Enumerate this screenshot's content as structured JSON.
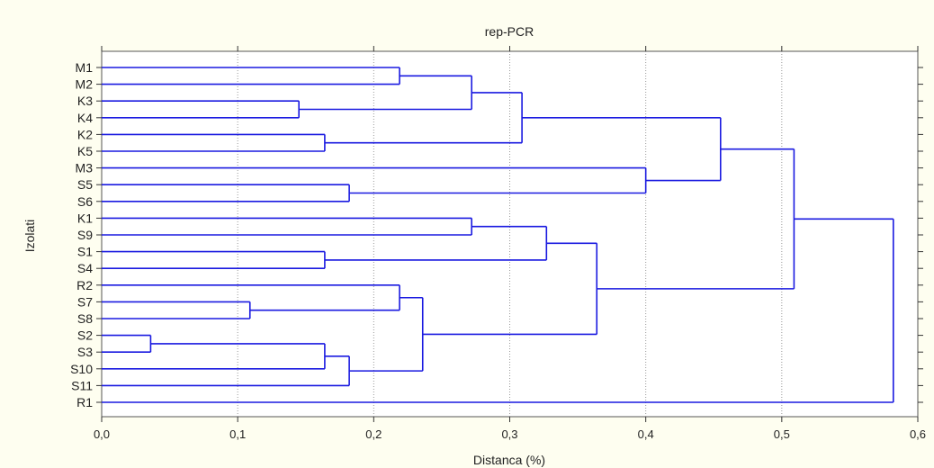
{
  "chart_data": {
    "type": "dendrogram",
    "title": "rep-PCR",
    "xlabel": "Distanca (%)",
    "ylabel": "Izolati",
    "xlim": [
      0.0,
      0.6
    ],
    "xticks": [
      0.0,
      0.1,
      0.2,
      0.3,
      0.4,
      0.5,
      0.6
    ],
    "xtick_labels": [
      "0,0",
      "0,1",
      "0,2",
      "0,3",
      "0,4",
      "0,5",
      "0,6"
    ],
    "grid": "vertical dotted",
    "line_color": "#1a1ae0",
    "leaves": [
      "M1",
      "M2",
      "K3",
      "K4",
      "K2",
      "K5",
      "M3",
      "S5",
      "S6",
      "K1",
      "S9",
      "S1",
      "S4",
      "R2",
      "S7",
      "S8",
      "S2",
      "S3",
      "S10",
      "S11",
      "R1"
    ],
    "merges": [
      {
        "id": "A",
        "children": [
          "M1",
          "M2"
        ],
        "height": 0.219
      },
      {
        "id": "B",
        "children": [
          "K3",
          "K4"
        ],
        "height": 0.145
      },
      {
        "id": "C",
        "children": [
          "A",
          "B"
        ],
        "height": 0.272
      },
      {
        "id": "D",
        "children": [
          "K2",
          "K5"
        ],
        "height": 0.164
      },
      {
        "id": "E",
        "children": [
          "C",
          "D"
        ],
        "height": 0.309
      },
      {
        "id": "F",
        "children": [
          "S5",
          "S6"
        ],
        "height": 0.182
      },
      {
        "id": "G",
        "children": [
          "M3",
          "F"
        ],
        "height": 0.4
      },
      {
        "id": "H",
        "children": [
          "E",
          "G"
        ],
        "height": 0.455
      },
      {
        "id": "I",
        "children": [
          "K1",
          "S9"
        ],
        "height": 0.272
      },
      {
        "id": "J",
        "children": [
          "S1",
          "S4"
        ],
        "height": 0.164
      },
      {
        "id": "K",
        "children": [
          "I",
          "J"
        ],
        "height": 0.327
      },
      {
        "id": "L",
        "children": [
          "S7",
          "S8"
        ],
        "height": 0.109
      },
      {
        "id": "M",
        "children": [
          "R2",
          "L"
        ],
        "height": 0.219
      },
      {
        "id": "N",
        "children": [
          "S2",
          "S3"
        ],
        "height": 0.036
      },
      {
        "id": "O",
        "children": [
          "N",
          "S10"
        ],
        "height": 0.164
      },
      {
        "id": "P",
        "children": [
          "O",
          "S11"
        ],
        "height": 0.182
      },
      {
        "id": "Q",
        "children": [
          "M",
          "P"
        ],
        "height": 0.236
      },
      {
        "id": "R",
        "children": [
          "K",
          "Q"
        ],
        "height": 0.364
      },
      {
        "id": "S",
        "children": [
          "H",
          "R"
        ],
        "height": 0.509
      },
      {
        "id": "T",
        "children": [
          "S",
          "R1"
        ],
        "height": 0.582
      }
    ]
  }
}
